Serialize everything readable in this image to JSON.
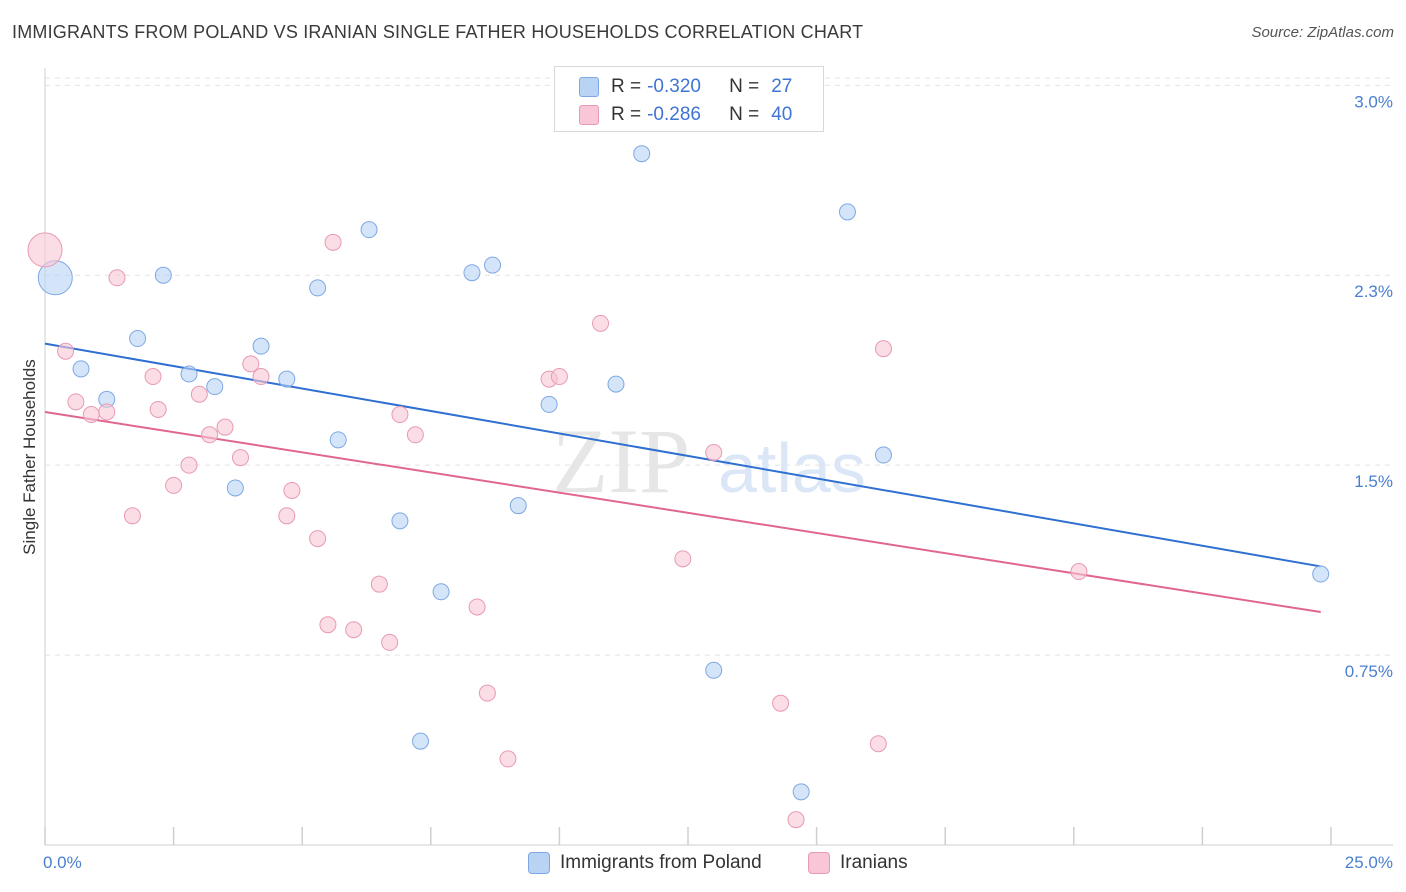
{
  "title": "IMMIGRANTS FROM POLAND VS IRANIAN SINGLE FATHER HOUSEHOLDS CORRELATION CHART",
  "source": "Source: ZipAtlas.com",
  "watermark": {
    "part1": "ZIP",
    "part2": "atlas"
  },
  "colors": {
    "blue_fill": "#b9d3f5",
    "blue_stroke": "#7ea8e3",
    "blue_line": "#2f6fd1",
    "pink_fill": "#f8c6d6",
    "pink_stroke": "#e89ab3",
    "pink_line": "#e0668f",
    "grid": "#e2e2e2",
    "axis_text": "#4a7fd0"
  },
  "legend_top": {
    "rows": [
      {
        "r_label": "R = ",
        "r_value": "-0.320",
        "n_label": "N = ",
        "n_value": "27",
        "series": "blue"
      },
      {
        "r_label": "R = ",
        "r_value": "-0.286",
        "n_label": "N = ",
        "n_value": "40",
        "series": "pink"
      }
    ]
  },
  "legend_bottom": [
    {
      "label": "Immigrants from Poland",
      "series": "blue"
    },
    {
      "label": "Iranians",
      "series": "pink"
    }
  ],
  "chart_data": {
    "type": "scatter",
    "title": "IMMIGRANTS FROM POLAND VS IRANIAN SINGLE FATHER HOUSEHOLDS CORRELATION CHART",
    "xlabel": "",
    "ylabel": "Single Father Households",
    "xlim": [
      0,
      25
    ],
    "ylim": [
      0,
      3.1
    ],
    "x_tick_labels": [
      "0.0%",
      "25.0%"
    ],
    "y_ticks": [
      {
        "value": 0.75,
        "label": "0.75%"
      },
      {
        "value": 1.5,
        "label": "1.5%"
      },
      {
        "value": 2.25,
        "label": "2.3%"
      },
      {
        "value": 3.0,
        "label": "3.0%"
      }
    ],
    "grid": "horizontal dashed",
    "series": [
      {
        "name": "Immigrants from Poland",
        "color": "blue",
        "points": [
          {
            "x": 0.2,
            "y": 2.24,
            "big": true
          },
          {
            "x": 0.7,
            "y": 1.88
          },
          {
            "x": 1.2,
            "y": 1.76
          },
          {
            "x": 1.8,
            "y": 2.0
          },
          {
            "x": 2.3,
            "y": 2.25
          },
          {
            "x": 2.8,
            "y": 1.86
          },
          {
            "x": 3.3,
            "y": 1.81
          },
          {
            "x": 3.7,
            "y": 1.41
          },
          {
            "x": 4.2,
            "y": 1.97
          },
          {
            "x": 4.7,
            "y": 1.84
          },
          {
            "x": 5.3,
            "y": 2.2
          },
          {
            "x": 5.7,
            "y": 1.6
          },
          {
            "x": 6.3,
            "y": 2.43
          },
          {
            "x": 6.9,
            "y": 1.28
          },
          {
            "x": 7.7,
            "y": 1.0
          },
          {
            "x": 7.3,
            "y": 0.41
          },
          {
            "x": 8.3,
            "y": 2.26
          },
          {
            "x": 8.7,
            "y": 2.29
          },
          {
            "x": 9.2,
            "y": 1.34
          },
          {
            "x": 9.8,
            "y": 1.74
          },
          {
            "x": 11.1,
            "y": 1.82
          },
          {
            "x": 11.6,
            "y": 2.73
          },
          {
            "x": 13.0,
            "y": 0.69
          },
          {
            "x": 14.7,
            "y": 0.21
          },
          {
            "x": 15.6,
            "y": 2.5
          },
          {
            "x": 16.3,
            "y": 1.54
          },
          {
            "x": 24.8,
            "y": 1.07
          }
        ],
        "trend": {
          "x1": 0.0,
          "y1": 1.98,
          "x2": 24.8,
          "y2": 1.1
        }
      },
      {
        "name": "Iranians",
        "color": "pink",
        "points": [
          {
            "x": 0.0,
            "y": 2.35,
            "big": true
          },
          {
            "x": 0.4,
            "y": 1.95
          },
          {
            "x": 0.6,
            "y": 1.75
          },
          {
            "x": 0.9,
            "y": 1.7
          },
          {
            "x": 1.2,
            "y": 1.71
          },
          {
            "x": 1.4,
            "y": 2.24
          },
          {
            "x": 1.7,
            "y": 1.3
          },
          {
            "x": 2.1,
            "y": 1.85
          },
          {
            "x": 2.2,
            "y": 1.72
          },
          {
            "x": 2.5,
            "y": 1.42
          },
          {
            "x": 2.8,
            "y": 1.5
          },
          {
            "x": 3.0,
            "y": 1.78
          },
          {
            "x": 3.2,
            "y": 1.62
          },
          {
            "x": 3.5,
            "y": 1.65
          },
          {
            "x": 3.8,
            "y": 1.53
          },
          {
            "x": 4.0,
            "y": 1.9
          },
          {
            "x": 4.2,
            "y": 1.85
          },
          {
            "x": 4.7,
            "y": 1.3
          },
          {
            "x": 4.8,
            "y": 1.4
          },
          {
            "x": 5.3,
            "y": 1.21
          },
          {
            "x": 5.5,
            "y": 0.87
          },
          {
            "x": 5.6,
            "y": 2.38
          },
          {
            "x": 6.0,
            "y": 0.85
          },
          {
            "x": 6.5,
            "y": 1.03
          },
          {
            "x": 6.7,
            "y": 0.8
          },
          {
            "x": 6.9,
            "y": 1.7
          },
          {
            "x": 7.2,
            "y": 1.62
          },
          {
            "x": 8.4,
            "y": 0.94
          },
          {
            "x": 8.6,
            "y": 0.6
          },
          {
            "x": 9.0,
            "y": 0.34
          },
          {
            "x": 9.8,
            "y": 1.84
          },
          {
            "x": 10.0,
            "y": 1.85
          },
          {
            "x": 10.8,
            "y": 2.06
          },
          {
            "x": 12.4,
            "y": 1.13
          },
          {
            "x": 13.0,
            "y": 1.55
          },
          {
            "x": 14.3,
            "y": 0.56
          },
          {
            "x": 14.6,
            "y": 0.1
          },
          {
            "x": 16.2,
            "y": 0.4
          },
          {
            "x": 16.3,
            "y": 1.96
          },
          {
            "x": 20.1,
            "y": 1.08
          }
        ],
        "trend": {
          "x1": 0.0,
          "y1": 1.71,
          "x2": 24.8,
          "y2": 0.92
        }
      }
    ]
  }
}
